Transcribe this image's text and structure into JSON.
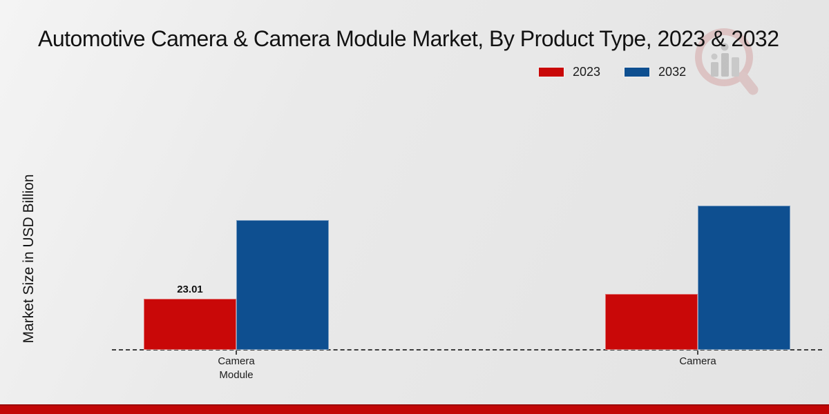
{
  "title": "Automotive Camera & Camera Module Market, By Product Type, 2023 & 2032",
  "y_axis_label": "Market Size in USD Billion",
  "legend": [
    {
      "label": "2023",
      "color": "#c90808"
    },
    {
      "label": "2032",
      "color": "#0e4f90"
    }
  ],
  "chart_data": {
    "type": "bar",
    "title": "Automotive Camera & Camera Module Market, By Product Type, 2023 & 2032",
    "xlabel": "",
    "ylabel": "Market Size in USD Billion",
    "categories": [
      "Camera Module",
      "Camera"
    ],
    "series": [
      {
        "name": "2023",
        "color": "#c90808",
        "values": [
          23.01,
          25.2
        ]
      },
      {
        "name": "2032",
        "color": "#0e4f90",
        "values": [
          58.5,
          65.0
        ]
      }
    ],
    "annotations": [
      {
        "series_index": 0,
        "category_index": 0,
        "text": "23.01"
      }
    ],
    "ylim": [
      0,
      70
    ],
    "grid": false,
    "legend_position": "top-right",
    "baseline_style": "dashed"
  },
  "colors": {
    "series_2023": "#c90808",
    "series_2032": "#0e4f90",
    "footer_strip": "#c20606",
    "background": "#e9e9e9"
  },
  "watermark_icon": "magnifier-bar-chart-logo"
}
